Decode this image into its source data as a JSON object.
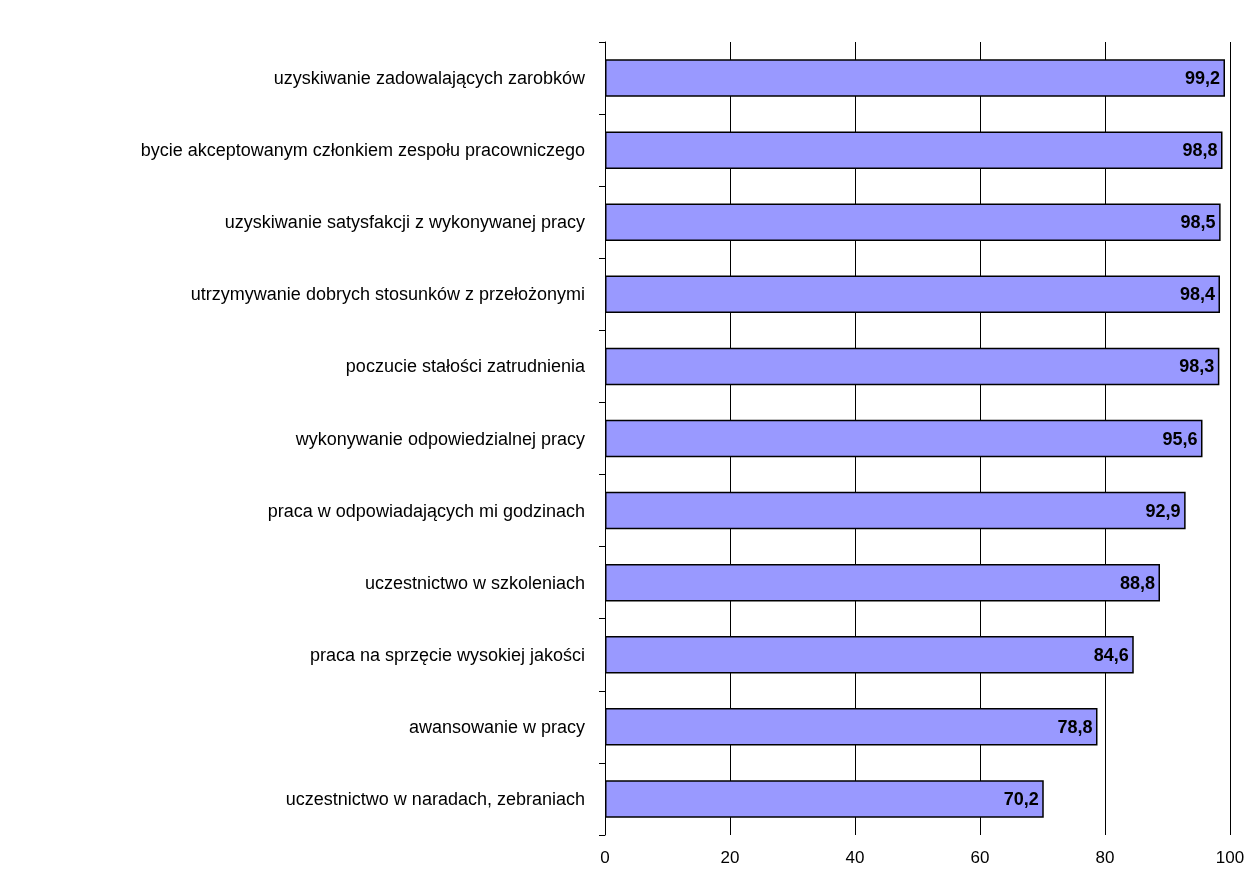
{
  "chart_data": {
    "type": "bar",
    "orientation": "horizontal",
    "categories": [
      "uzyskiwanie zadowalających zarobków",
      "bycie akceptowanym członkiem zespołu pracowniczego",
      "uzyskiwanie satysfakcji z wykonywanej pracy",
      "utrzymywanie dobrych stosunków z przełożonymi",
      "poczucie stałości zatrudnienia",
      "wykonywanie odpowiedzialnej pracy",
      "praca w odpowiadających mi godzinach",
      "uczestnictwo w szkoleniach",
      "praca na sprzęcie wysokiej jakości",
      "awansowanie w pracy",
      "uczestnictwo w naradach, zebraniach"
    ],
    "values": [
      99.2,
      98.8,
      98.5,
      98.4,
      98.3,
      95.6,
      92.9,
      88.8,
      84.6,
      78.8,
      70.2
    ],
    "value_labels": [
      "99,2",
      "98,8",
      "98,5",
      "98,4",
      "98,3",
      "95,6",
      "92,9",
      "88,8",
      "84,6",
      "78,8",
      "70,2"
    ],
    "color": "#9999ff",
    "xlim": [
      0,
      100
    ],
    "xticks": [
      0,
      20,
      40,
      60,
      80,
      100
    ],
    "grid": "x"
  }
}
